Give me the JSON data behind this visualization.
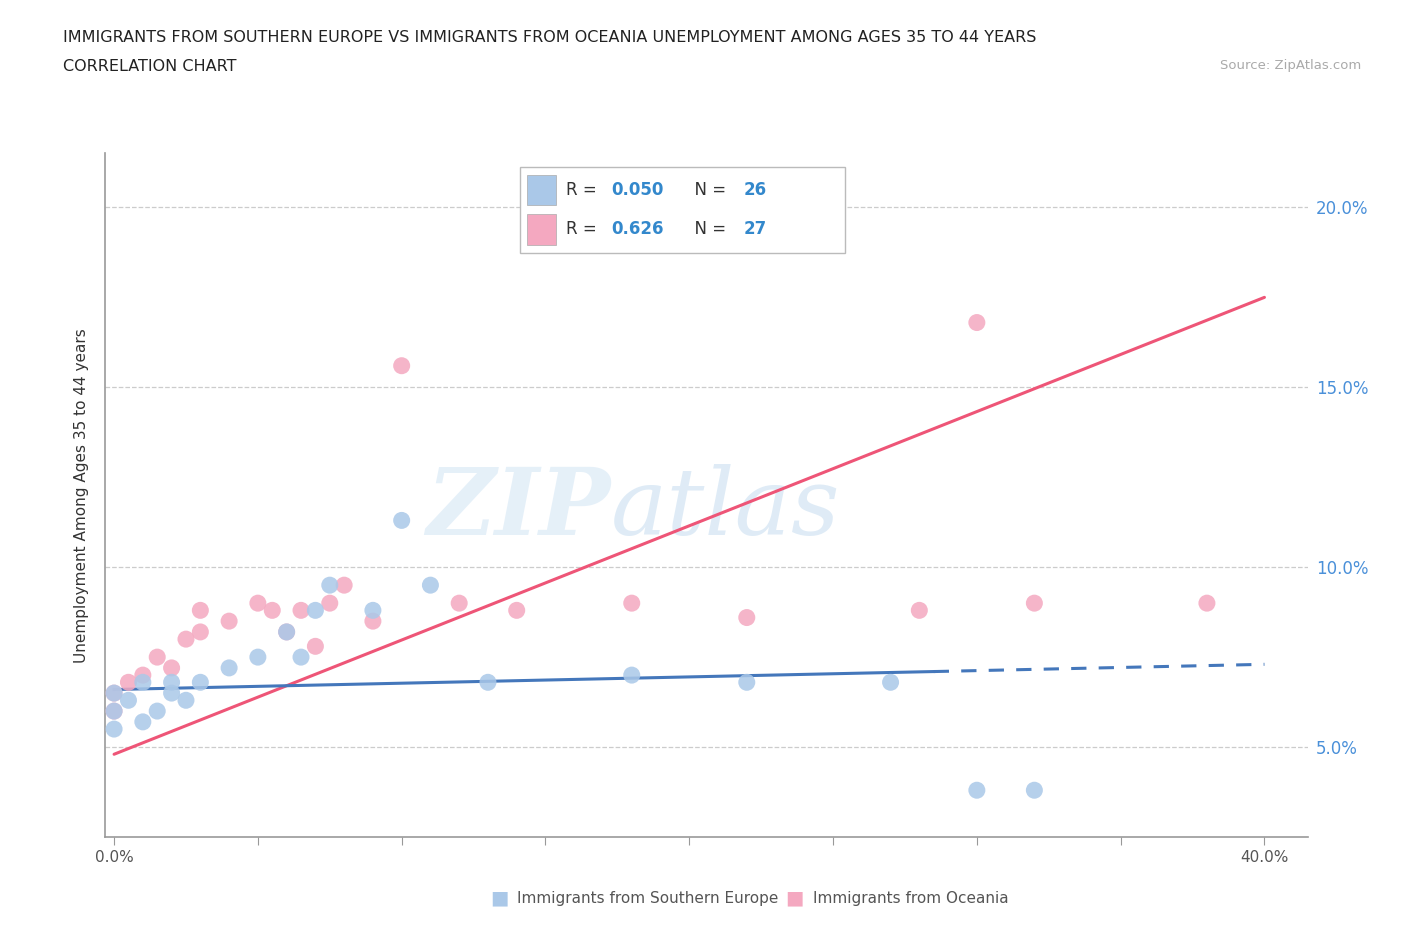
{
  "title_line1": "IMMIGRANTS FROM SOUTHERN EUROPE VS IMMIGRANTS FROM OCEANIA UNEMPLOYMENT AMONG AGES 35 TO 44 YEARS",
  "title_line2": "CORRELATION CHART",
  "source_text": "Source: ZipAtlas.com",
  "ylabel": "Unemployment Among Ages 35 to 44 years",
  "watermark_top": "ZIP",
  "watermark_bot": "atlas",
  "xlim": [
    -0.003,
    0.415
  ],
  "ylim": [
    0.025,
    0.215
  ],
  "ytick_positions": [
    0.05,
    0.1,
    0.15,
    0.2
  ],
  "ytick_labels": [
    "5.0%",
    "10.0%",
    "15.0%",
    "20.0%"
  ],
  "xtick_positions": [
    0.0,
    0.05,
    0.1,
    0.15,
    0.2,
    0.25,
    0.3,
    0.35,
    0.4
  ],
  "xtick_labels": [
    "0.0%",
    "",
    "",
    "",
    "",
    "",
    "",
    "",
    "40.0%"
  ],
  "legend_r1": "R = 0.050",
  "legend_n1": "N = 26",
  "legend_r2": "R = 0.626",
  "legend_n2": "N = 27",
  "color_blue": "#aac8e8",
  "color_pink": "#f4a8c0",
  "line_color_blue": "#4477bb",
  "line_color_pink": "#ee5577",
  "legend_label1": "Immigrants from Southern Europe",
  "legend_label2": "Immigrants from Oceania",
  "se_x": [
    0.0,
    0.0,
    0.0,
    0.005,
    0.01,
    0.01,
    0.015,
    0.02,
    0.02,
    0.025,
    0.03,
    0.04,
    0.05,
    0.06,
    0.065,
    0.07,
    0.075,
    0.09,
    0.1,
    0.11,
    0.13,
    0.18,
    0.22,
    0.27,
    0.3,
    0.32
  ],
  "se_y": [
    0.065,
    0.06,
    0.055,
    0.063,
    0.057,
    0.068,
    0.06,
    0.065,
    0.068,
    0.063,
    0.068,
    0.072,
    0.075,
    0.082,
    0.075,
    0.088,
    0.095,
    0.088,
    0.113,
    0.095,
    0.068,
    0.07,
    0.068,
    0.068,
    0.038,
    0.038
  ],
  "oc_x": [
    0.0,
    0.0,
    0.005,
    0.01,
    0.015,
    0.02,
    0.025,
    0.03,
    0.03,
    0.04,
    0.05,
    0.055,
    0.06,
    0.065,
    0.07,
    0.075,
    0.08,
    0.09,
    0.1,
    0.12,
    0.14,
    0.18,
    0.22,
    0.28,
    0.3,
    0.32,
    0.38
  ],
  "oc_y": [
    0.065,
    0.06,
    0.068,
    0.07,
    0.075,
    0.072,
    0.08,
    0.082,
    0.088,
    0.085,
    0.09,
    0.088,
    0.082,
    0.088,
    0.078,
    0.09,
    0.095,
    0.085,
    0.156,
    0.09,
    0.088,
    0.09,
    0.086,
    0.088,
    0.168,
    0.09,
    0.09
  ],
  "blue_line_solid_end": 0.285,
  "blue_line_x0": 0.0,
  "blue_line_y0": 0.066,
  "blue_line_x1": 0.4,
  "blue_line_y1": 0.073,
  "pink_line_x0": 0.0,
  "pink_line_y0": 0.048,
  "pink_line_x1": 0.4,
  "pink_line_y1": 0.175
}
